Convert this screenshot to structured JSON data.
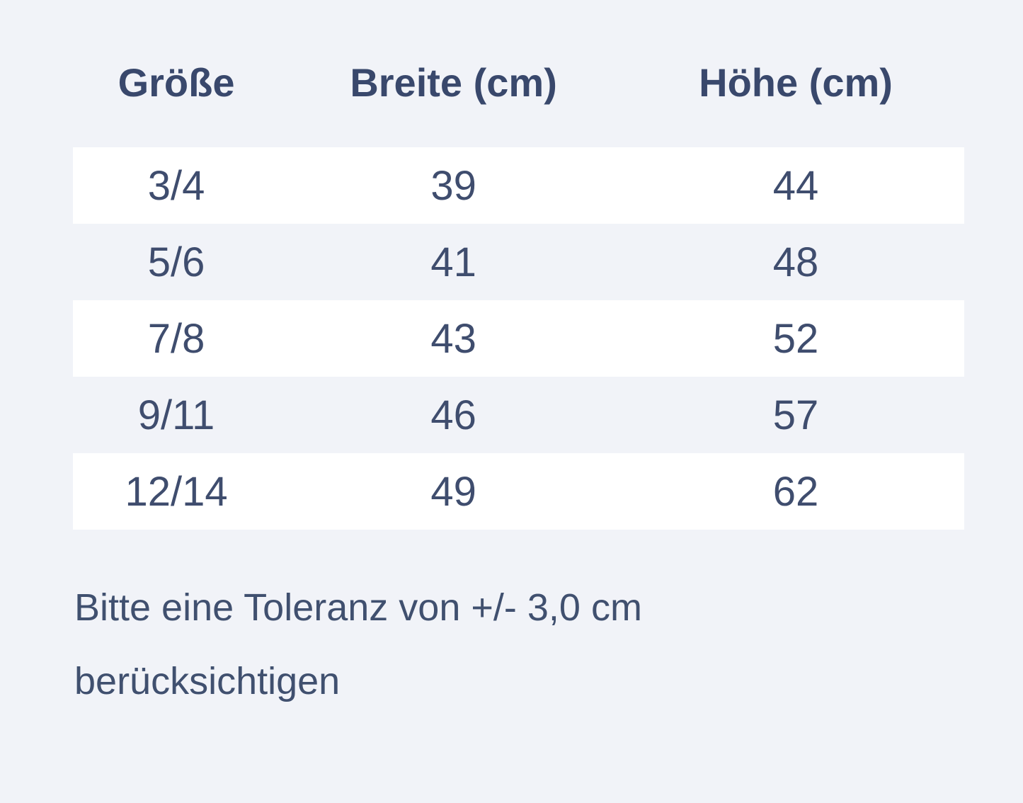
{
  "size_chart": {
    "headers": {
      "size": "Größe",
      "width": "Breite (cm)",
      "height": "Höhe (cm)"
    },
    "rows": [
      {
        "size": "3/4",
        "width": "39",
        "height": "44"
      },
      {
        "size": "5/6",
        "width": "41",
        "height": "48"
      },
      {
        "size": "7/8",
        "width": "43",
        "height": "52"
      },
      {
        "size": "9/11",
        "width": "46",
        "height": "57"
      },
      {
        "size": "12/14",
        "width": "49",
        "height": "62"
      }
    ]
  },
  "note": {
    "lines": [
      "Bitte eine Toleranz von +/- 3,0 cm",
      "berücksichtigen"
    ]
  },
  "colors": {
    "page_background": "#f1f3f8",
    "stripe_row": "#ffffff",
    "header_text": "#39486c",
    "cell_text": "#3f4d6e",
    "note_text": "#40506f"
  }
}
